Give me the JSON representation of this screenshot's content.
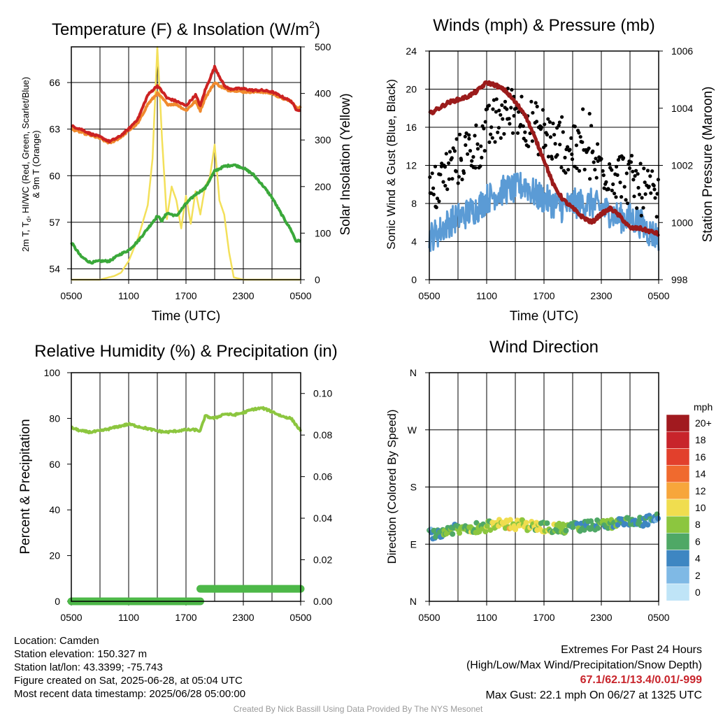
{
  "panels": {
    "temp": {
      "title": "Temperature (F) & Insolation (W/m²)",
      "ylabel_left_line1": "2m T, Td, HI/WC (Red, Green, Scarlet/Blue)",
      "ylabel_left_line2": "& 9m T (Orange)",
      "ylabel_right": "Solar Insolation (Yellow)",
      "xlabel": "Time (UTC)"
    },
    "wind": {
      "title": "Winds (mph) & Pressure (mb)",
      "ylabel_left": "Sonic Wind & Gust (Blue, Black)",
      "ylabel_right": "Station Pressure (Maroon)",
      "xlabel": "Time (UTC)"
    },
    "rh": {
      "title": "Relative Humidity (%) & Precipitation (in)",
      "ylabel_left": "Percent & Precipitation"
    },
    "dir": {
      "title": "Wind Direction",
      "ylabel_left": "Direction (Colored By Speed)",
      "legend_unit": "mph"
    }
  },
  "chart_data": [
    {
      "type": "line",
      "title": "Temperature (F) & Insolation (W/m²)",
      "xlabel": "Time (UTC)",
      "x_ticks": [
        "0500",
        "1100",
        "1700",
        "2300",
        "0500"
      ],
      "xlim": [
        0,
        24
      ],
      "ylim_left": [
        53.3,
        68.3
      ],
      "y_ticks_left": [
        "54",
        "57",
        "60",
        "63",
        "66"
      ],
      "ylim_right": [
        0,
        500
      ],
      "y_ticks_right": [
        "0",
        "100",
        "200",
        "300",
        "400",
        "500"
      ],
      "grid": true,
      "series": [
        {
          "color": "#cc2222",
          "axis": "left",
          "x": [
            0,
            1,
            2,
            3,
            4,
            5,
            6,
            7,
            8,
            9,
            9.8,
            10,
            11,
            12,
            13,
            13.5,
            14,
            15,
            16,
            16.5,
            17,
            18,
            19,
            20,
            21,
            22,
            23,
            23.5,
            24
          ],
          "values": [
            63.2,
            63.0,
            62.7,
            62.5,
            62.2,
            62.5,
            63.0,
            63.7,
            65.2,
            65.8,
            65.2,
            65.0,
            64.8,
            64.5,
            65.2,
            64.5,
            65.5,
            67.0,
            65.8,
            65.6,
            65.6,
            65.6,
            65.5,
            65.5,
            65.4,
            65.1,
            64.8,
            64.3,
            64.2
          ]
        },
        {
          "color": "#f08a2e",
          "axis": "left",
          "x": [
            0,
            1,
            2,
            3,
            4,
            5,
            6,
            7,
            8,
            9,
            9.8,
            10,
            11,
            12,
            13,
            13.5,
            14,
            15,
            16,
            16.5,
            17,
            18,
            19,
            20,
            21,
            22,
            23,
            23.5,
            24
          ],
          "values": [
            63.0,
            62.8,
            62.6,
            62.4,
            62.1,
            62.4,
            62.9,
            63.4,
            64.6,
            65.3,
            64.8,
            64.6,
            64.6,
            64.2,
            64.8,
            64.2,
            65.0,
            66.0,
            65.6,
            65.5,
            65.5,
            65.4,
            65.4,
            65.4,
            65.3,
            65.0,
            64.8,
            64.4,
            64.4
          ]
        },
        {
          "color": "#3aa83a",
          "axis": "left",
          "x": [
            0,
            1,
            2,
            3,
            4,
            5,
            6,
            7,
            8,
            9,
            9.5,
            10,
            11,
            12,
            13,
            14,
            15,
            16,
            17,
            18,
            19,
            20,
            21,
            22,
            23,
            23.5,
            24
          ],
          "values": [
            55.7,
            54.8,
            54.4,
            54.5,
            54.5,
            54.9,
            55.2,
            55.8,
            56.6,
            57.4,
            57.1,
            57.6,
            57.4,
            58.2,
            58.8,
            59.2,
            60.3,
            60.6,
            60.7,
            60.5,
            60.1,
            59.4,
            58.6,
            57.5,
            56.5,
            55.8,
            55.8
          ]
        },
        {
          "color": "#f3e05a",
          "axis": "right",
          "x": [
            0,
            3,
            4.5,
            5.2,
            6,
            7,
            8,
            8.5,
            9,
            9.5,
            10,
            10.5,
            11,
            11.5,
            12,
            12.5,
            13,
            13.5,
            14,
            14.5,
            15,
            15.5,
            16,
            16.5,
            17,
            18,
            24
          ],
          "values": [
            0,
            0,
            8,
            15,
            40,
            90,
            160,
            260,
            500,
            300,
            130,
            200,
            170,
            110,
            180,
            120,
            190,
            140,
            200,
            220,
            290,
            170,
            140,
            60,
            5,
            0,
            0
          ]
        }
      ]
    },
    {
      "type": "scatter",
      "title": "Winds (mph) & Pressure (mb)",
      "xlabel": "Time (UTC)",
      "x_ticks": [
        "0500",
        "1100",
        "1700",
        "2300",
        "0500"
      ],
      "xlim": [
        0,
        24
      ],
      "ylim_left": [
        0,
        24
      ],
      "y_ticks_left": [
        "0",
        "4",
        "8",
        "12",
        "16",
        "20",
        "24"
      ],
      "ylim_right": [
        998,
        1006
      ],
      "y_ticks_right": [
        "998",
        "1000",
        "1002",
        "1004",
        "1006"
      ],
      "grid": true,
      "series": [
        {
          "color": "#5b9bd5",
          "axis": "left",
          "type": "line",
          "x": [
            0,
            1,
            2,
            3,
            4,
            5,
            6,
            7,
            8,
            9,
            10,
            11,
            12,
            13,
            14,
            15,
            16,
            17,
            18,
            19,
            20,
            21,
            22,
            23,
            24
          ],
          "values": [
            4.5,
            5,
            6,
            6.5,
            7,
            7.5,
            8.5,
            9,
            9.5,
            9.5,
            10,
            9,
            8.5,
            8,
            7.5,
            8,
            8,
            8,
            7.5,
            7,
            6.5,
            6.5,
            6,
            5,
            4.5
          ]
        },
        {
          "color": "#000000",
          "axis": "left",
          "type": "scatter",
          "x": [
            0,
            1,
            2,
            3,
            4,
            5,
            6,
            7,
            8,
            9,
            10,
            11,
            12,
            13,
            14,
            15,
            16,
            17,
            18,
            19,
            20,
            21,
            22,
            23,
            24
          ],
          "values": [
            8.5,
            10,
            11.5,
            12.5,
            13.5,
            14,
            15.5,
            16.5,
            17.5,
            18,
            17,
            16,
            15.5,
            14.5,
            14,
            13.5,
            13,
            12.5,
            12,
            11.5,
            11,
            10.5,
            9.5,
            9,
            8
          ]
        },
        {
          "color": "#9b1b1b",
          "axis": "right",
          "type": "line",
          "x": [
            0,
            1,
            2,
            3,
            4,
            5,
            6,
            7,
            8,
            9,
            10,
            11,
            12,
            13,
            14,
            15,
            16,
            17,
            18,
            19,
            20,
            21,
            22,
            23,
            24
          ],
          "values": [
            1003.8,
            1004.0,
            1004.2,
            1004.3,
            1004.4,
            1004.6,
            1004.9,
            1004.8,
            1004.6,
            1004.2,
            1003.8,
            1003.0,
            1002.2,
            1001.3,
            1000.8,
            1000.5,
            1000.2,
            1000.0,
            1000.3,
            1000.5,
            1000.2,
            999.8,
            999.8,
            999.7,
            999.6
          ]
        }
      ]
    },
    {
      "type": "line",
      "title": "Relative Humidity (%) & Precipitation (in)",
      "x_ticks": [
        "0500",
        "1100",
        "1700",
        "2300",
        "0500"
      ],
      "xlim": [
        0,
        24
      ],
      "ylim_left": [
        0,
        100
      ],
      "y_ticks_left": [
        "0",
        "20",
        "40",
        "60",
        "80",
        "100"
      ],
      "ylim_right": [
        0,
        0.11
      ],
      "y_ticks_right": [
        "0.00",
        "0.02",
        "0.04",
        "0.06",
        "0.08",
        "0.10"
      ],
      "grid": true,
      "series": [
        {
          "color": "#8cc63f",
          "axis": "left",
          "x": [
            0,
            1,
            2,
            3,
            4,
            5,
            6,
            7,
            8,
            9,
            10,
            11,
            12,
            13,
            13.5,
            14,
            15,
            16,
            17,
            18,
            19,
            20,
            21,
            22,
            23,
            24
          ],
          "values": [
            76,
            74.5,
            74,
            74.5,
            75.5,
            76.5,
            77.5,
            76.5,
            75.5,
            74.5,
            74,
            74.5,
            75,
            75,
            74.5,
            81,
            80,
            82,
            81.5,
            82.5,
            84,
            84.5,
            83,
            81,
            80,
            74.5
          ]
        },
        {
          "color": "#4db848",
          "axis": "right",
          "x": [
            0,
            13.5,
            13.55,
            24
          ],
          "values": [
            0.0,
            0.0,
            0.006,
            0.006
          ]
        }
      ]
    },
    {
      "type": "scatter",
      "title": "Wind Direction",
      "x_ticks": [
        "0500",
        "1100",
        "1700",
        "2300",
        "0500"
      ],
      "xlim": [
        0,
        24
      ],
      "y_ticks_left": [
        "N",
        "E",
        "S",
        "W",
        "N"
      ],
      "ylim_left": [
        0,
        360
      ],
      "grid": true,
      "legend_title": "mph",
      "legend_levels": [
        "20+",
        "18",
        "16",
        "14",
        "12",
        "10",
        "8",
        "6",
        "4",
        "2",
        "0"
      ],
      "legend_colors": [
        "#a11a1f",
        "#c8242b",
        "#e2402c",
        "#f06a2e",
        "#f7a63b",
        "#f0dd4f",
        "#8cc63f",
        "#4fa866",
        "#3e86c2",
        "#7fb9e5",
        "#bfe4f7"
      ],
      "series": [
        {
          "x": [
            0,
            2,
            4,
            6,
            8,
            10,
            12,
            14,
            16,
            18,
            20,
            22,
            24
          ],
          "values": [
            105,
            112,
            115,
            118,
            122,
            120,
            117,
            114,
            118,
            121,
            123,
            125,
            130
          ],
          "speeds": [
            4,
            6,
            7,
            8,
            10,
            9,
            8,
            7,
            6,
            7,
            6,
            5,
            4
          ]
        }
      ]
    }
  ],
  "info": {
    "location": "Location: Camden",
    "elevation": "Station elevation: 150.327 m",
    "latlon": "Station lat/lon: 43.3399; -75.743",
    "created": "Figure created on Sat, 2025-06-28, at 05:04 UTC",
    "recent": "Most recent data timestamp: 2025/06/28 05:00:00"
  },
  "extremes": {
    "title": "Extremes For Past 24 Hours",
    "subtitle": "(High/Low/Max Wind/Precipitation/Snow Depth)",
    "values": "67.1/62.1/13.4/0.01/-999",
    "gust": "Max Gust: 22.1 mph On 06/27 at 1325 UTC"
  },
  "credit": "Created By Nick Bassill Using Data Provided By The NYS Mesonet"
}
